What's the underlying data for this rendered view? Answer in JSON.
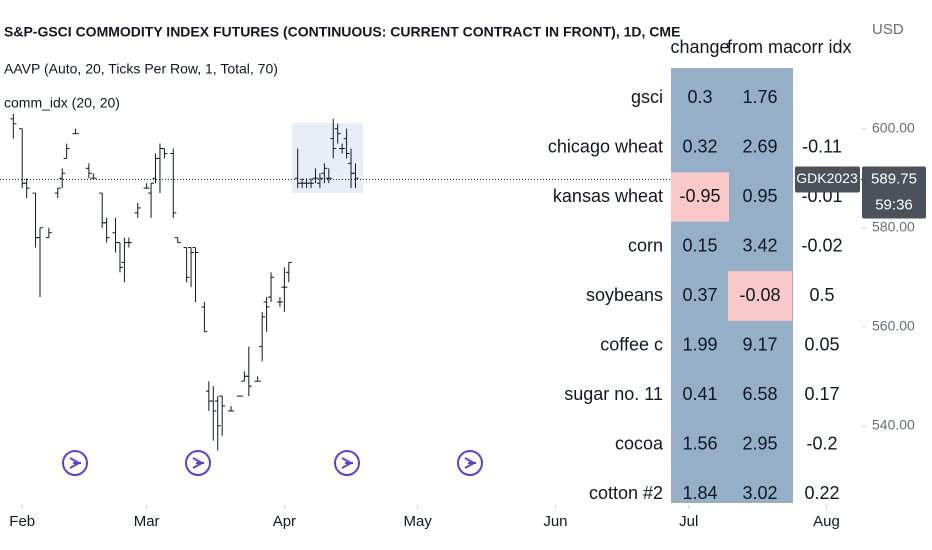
{
  "chart_data": {
    "type": "ohlc",
    "title": "S&P-GSCI COMMODITY INDEX FUTURES (CONTINUOUS: CURRENT CONTRACT IN FRONT), 1D, CME",
    "indicators": [
      "AAVP (Auto, 20, Ticks Per Row, 1, Total, 70)",
      "comm_idx (20, 20)"
    ],
    "currency": "USD",
    "color": "#131722",
    "x": [
      -2,
      0,
      1,
      3,
      4,
      6,
      8,
      9,
      10,
      12,
      15,
      16,
      18,
      19,
      21,
      22,
      23,
      24,
      26,
      28,
      29,
      30,
      31,
      32,
      34,
      35,
      37,
      38,
      39,
      41,
      42,
      43,
      44,
      45,
      47,
      49,
      50,
      51,
      53,
      54,
      55,
      56,
      58,
      59,
      60,
      62,
      63,
      64,
      65,
      66,
      67,
      68,
      69,
      70,
      71,
      72,
      73,
      74,
      75
    ],
    "open": [
      602,
      600,
      589,
      587,
      578,
      578,
      587,
      590,
      594,
      599,
      592,
      590,
      587,
      581,
      579,
      577,
      573,
      577,
      583,
      588,
      587,
      590,
      594,
      596,
      595,
      578,
      576,
      576,
      576,
      564,
      547,
      545,
      545,
      546,
      543,
      546,
      549,
      550,
      549,
      556,
      565,
      566,
      565,
      568,
      571,
      590,
      589,
      589,
      589,
      590,
      589,
      591,
      590,
      598,
      600,
      596,
      598,
      593,
      591
    ],
    "high": [
      603,
      600,
      590,
      587,
      580,
      580,
      588,
      592,
      597,
      600,
      593,
      591,
      587,
      582,
      582,
      577,
      578,
      578,
      585,
      589,
      589,
      595,
      597,
      596,
      596,
      578,
      576,
      576,
      576,
      565,
      549,
      548,
      546,
      546,
      544,
      546,
      551,
      556,
      550,
      563,
      566,
      571,
      566,
      572,
      573,
      596,
      590,
      590,
      590,
      592,
      591,
      593,
      592,
      602,
      601,
      597,
      600,
      596,
      593
    ],
    "low": [
      598,
      588,
      586,
      576,
      566,
      578,
      586,
      588,
      594,
      599,
      590,
      590,
      580,
      577,
      575,
      571,
      569,
      576,
      582,
      588,
      582,
      589,
      587,
      594,
      582,
      577,
      569,
      568,
      565,
      559,
      543,
      537,
      535,
      538,
      543,
      546,
      549,
      546,
      549,
      553,
      559,
      565,
      564,
      563,
      569,
      588,
      588,
      588,
      588,
      589,
      588,
      589,
      589,
      594,
      597,
      595,
      594,
      588,
      588
    ],
    "close": [
      601,
      589,
      588,
      578,
      580,
      579,
      588,
      591,
      596,
      599,
      591,
      590,
      581,
      578,
      577,
      572,
      577,
      577,
      584,
      588,
      589,
      594,
      596,
      595,
      583,
      577,
      570,
      575,
      575,
      559,
      545,
      543,
      540,
      544,
      543,
      546,
      550,
      548,
      549,
      562,
      564,
      570,
      565,
      568,
      573,
      589,
      589,
      589,
      589,
      590,
      590,
      592,
      590,
      596,
      599,
      596,
      595,
      591,
      590
    ],
    "xlim": [
      -5,
      189
    ],
    "xticks": [
      {
        "value": 0,
        "label": "Feb"
      },
      {
        "value": 28,
        "label": "Mar"
      },
      {
        "value": 59,
        "label": "Apr"
      },
      {
        "value": 89,
        "label": "May"
      },
      {
        "value": 120,
        "label": "Jun"
      },
      {
        "value": 150,
        "label": "Jul"
      },
      {
        "value": 181,
        "label": "Aug"
      }
    ],
    "ylim": [
      524,
      626
    ],
    "yticks": [
      {
        "value": 600,
        "label": "600.00"
      },
      {
        "value": 580,
        "label": "580.00"
      },
      {
        "value": 560,
        "label": "560.00"
      },
      {
        "value": 540,
        "label": "540.00"
      }
    ],
    "last_price": {
      "value": 589.75,
      "symbol": "GDK2023",
      "countdown": "59:36"
    }
  },
  "table": {
    "columns": [
      "change",
      "from ma",
      "corr idx"
    ],
    "cell_color": "#94afc7",
    "negative_color": "#f9c8c8",
    "rows": [
      {
        "label": "gsci",
        "values": [
          0.3,
          1.76,
          null
        ]
      },
      {
        "label": "chicago wheat",
        "values": [
          0.32,
          2.69,
          -0.11
        ]
      },
      {
        "label": "kansas wheat",
        "values": [
          -0.95,
          0.95,
          -0.01
        ]
      },
      {
        "label": "corn",
        "values": [
          0.15,
          3.42,
          -0.02
        ]
      },
      {
        "label": "soybeans",
        "values": [
          0.37,
          -0.08,
          0.5
        ]
      },
      {
        "label": "coffee c",
        "values": [
          1.99,
          9.17,
          0.05
        ]
      },
      {
        "label": "sugar no. 11",
        "values": [
          0.41,
          6.58,
          0.17
        ]
      },
      {
        "label": "cocoa",
        "values": [
          1.56,
          2.95,
          -0.2
        ]
      },
      {
        "label": "cotton #2",
        "values": [
          1.84,
          3.02,
          0.22
        ]
      }
    ]
  }
}
